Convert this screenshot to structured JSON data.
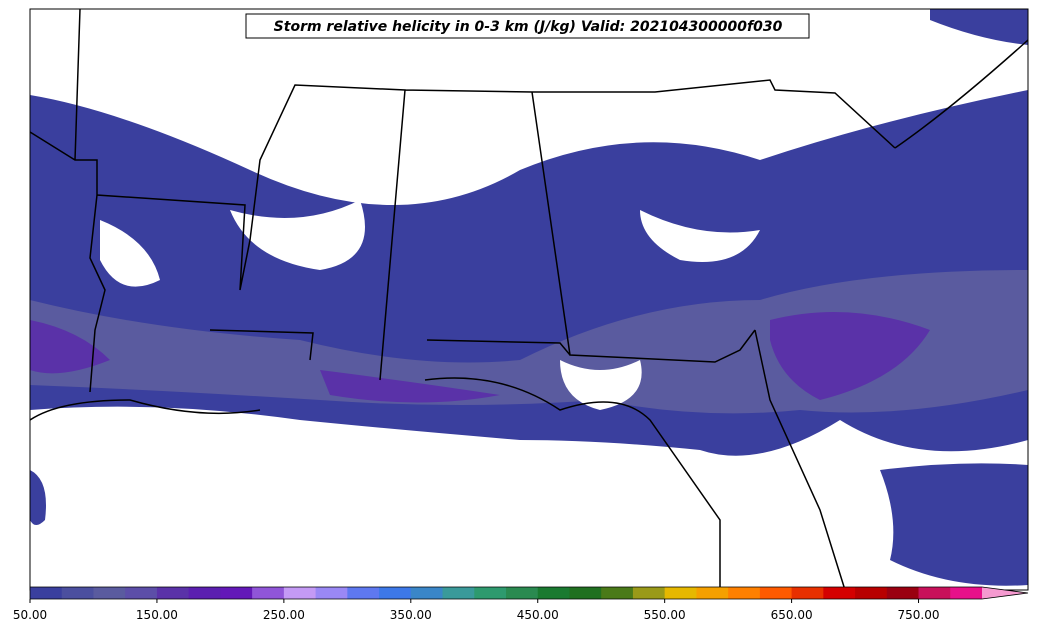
{
  "title": "Storm relative helicity in 0-3 km (J/kg) Valid: 202104300000f030",
  "colorbar": {
    "levels": [
      50,
      75,
      100,
      125,
      150,
      175,
      200,
      225,
      250,
      275,
      300,
      325,
      350,
      375,
      400,
      425,
      450,
      475,
      500,
      525,
      550,
      575,
      600,
      625,
      650,
      675,
      700,
      725,
      750,
      775,
      800
    ],
    "colors": [
      "#3a3f9e",
      "#4b4f9f",
      "#5a5b9f",
      "#5c4ea8",
      "#5a32a8",
      "#5b1fb0",
      "#6318b8",
      "#9055d8",
      "#c49af5",
      "#9a88f5",
      "#5e78f0",
      "#3d78e8",
      "#3a86c8",
      "#3a9a9a",
      "#2e9a6e",
      "#2a8a50",
      "#1a7a30",
      "#207020",
      "#4a7a18",
      "#9a9a18",
      "#e6b800",
      "#f5a000",
      "#ff8000",
      "#ff5a00",
      "#e83000",
      "#d40000",
      "#b80000",
      "#9a0010",
      "#c8105a",
      "#e8108a"
    ],
    "extend_color": "#f59ad0",
    "ticks": [
      {
        "value": 50,
        "label": "50.00"
      },
      {
        "value": 150,
        "label": "150.00"
      },
      {
        "value": 250,
        "label": "250.00"
      },
      {
        "value": 350,
        "label": "350.00"
      },
      {
        "value": 450,
        "label": "450.00"
      },
      {
        "value": 550,
        "label": "550.00"
      },
      {
        "value": 650,
        "label": "650.00"
      },
      {
        "value": 750,
        "label": "750.00"
      }
    ]
  }
}
